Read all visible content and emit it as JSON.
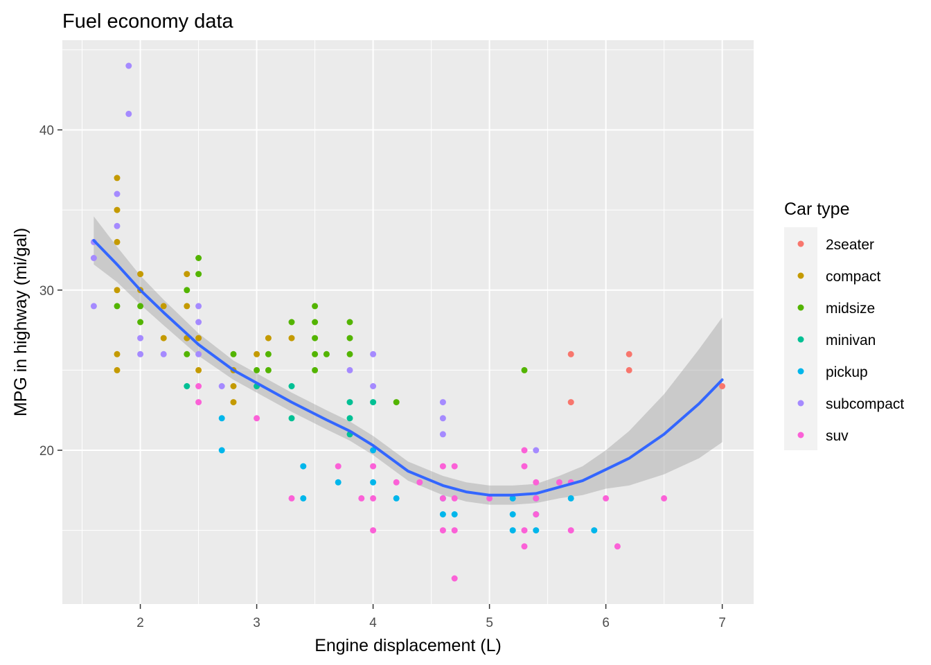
{
  "chart_data": {
    "type": "scatter",
    "title": "Fuel economy data",
    "xlabel": "Engine displacement (L)",
    "ylabel": "MPG in highway (mi/gal)",
    "xlim": [
      1.33,
      7.27
    ],
    "ylim": [
      10.4,
      45.6
    ],
    "x_ticks": [
      2,
      3,
      4,
      5,
      6,
      7
    ],
    "y_ticks": [
      20,
      30,
      40
    ],
    "grid": true,
    "legend": {
      "title": "Car type",
      "position": "right"
    },
    "colors": {
      "2seater": "#F8766D",
      "compact": "#C49A00",
      "midsize": "#53B400",
      "minivan": "#00C094",
      "pickup": "#00B6EB",
      "subcompact": "#A58AFF",
      "suv": "#FB61D7"
    },
    "series": [
      {
        "name": "2seater",
        "points": [
          [
            5.7,
            26
          ],
          [
            5.7,
            23
          ],
          [
            6.2,
            26
          ],
          [
            6.2,
            25
          ],
          [
            7.0,
            24
          ]
        ]
      },
      {
        "name": "compact",
        "points": [
          [
            1.8,
            37
          ],
          [
            1.8,
            35
          ],
          [
            1.8,
            33
          ],
          [
            1.8,
            30
          ],
          [
            1.8,
            26
          ],
          [
            1.8,
            25
          ],
          [
            2.0,
            31
          ],
          [
            2.0,
            30
          ],
          [
            2.2,
            29
          ],
          [
            2.2,
            27
          ],
          [
            2.4,
            31
          ],
          [
            2.4,
            29
          ],
          [
            2.4,
            27
          ],
          [
            2.5,
            27
          ],
          [
            2.5,
            25
          ],
          [
            2.8,
            25
          ],
          [
            2.8,
            24
          ],
          [
            2.8,
            23
          ],
          [
            3.0,
            26
          ],
          [
            3.1,
            27
          ],
          [
            3.3,
            27
          ]
        ]
      },
      {
        "name": "midsize",
        "points": [
          [
            1.8,
            29
          ],
          [
            2.0,
            29
          ],
          [
            2.0,
            28
          ],
          [
            2.4,
            30
          ],
          [
            2.4,
            26
          ],
          [
            2.5,
            32
          ],
          [
            2.5,
            31
          ],
          [
            2.8,
            26
          ],
          [
            3.0,
            25
          ],
          [
            3.1,
            26
          ],
          [
            3.1,
            25
          ],
          [
            3.3,
            28
          ],
          [
            3.5,
            29
          ],
          [
            3.5,
            28
          ],
          [
            3.5,
            27
          ],
          [
            3.5,
            26
          ],
          [
            3.5,
            25
          ],
          [
            3.6,
            26
          ],
          [
            3.8,
            28
          ],
          [
            3.8,
            27
          ],
          [
            3.8,
            26
          ],
          [
            4.2,
            23
          ],
          [
            5.3,
            25
          ]
        ]
      },
      {
        "name": "minivan",
        "points": [
          [
            2.4,
            24
          ],
          [
            3.0,
            24
          ],
          [
            3.3,
            24
          ],
          [
            3.3,
            22
          ],
          [
            3.8,
            23
          ],
          [
            3.8,
            22
          ],
          [
            3.8,
            21
          ],
          [
            4.0,
            23
          ]
        ]
      },
      {
        "name": "pickup",
        "points": [
          [
            2.7,
            22
          ],
          [
            2.7,
            20
          ],
          [
            3.4,
            19
          ],
          [
            3.4,
            17
          ],
          [
            3.7,
            18
          ],
          [
            4.0,
            20
          ],
          [
            4.0,
            18
          ],
          [
            4.2,
            17
          ],
          [
            4.6,
            17
          ],
          [
            4.6,
            16
          ],
          [
            4.7,
            16
          ],
          [
            5.2,
            17
          ],
          [
            5.2,
            16
          ],
          [
            5.2,
            15
          ],
          [
            5.4,
            17
          ],
          [
            5.4,
            16
          ],
          [
            5.4,
            15
          ],
          [
            5.7,
            17
          ],
          [
            5.9,
            15
          ]
        ]
      },
      {
        "name": "subcompact",
        "points": [
          [
            1.6,
            33
          ],
          [
            1.6,
            32
          ],
          [
            1.6,
            29
          ],
          [
            1.8,
            36
          ],
          [
            1.8,
            34
          ],
          [
            1.9,
            44
          ],
          [
            1.9,
            41
          ],
          [
            2.0,
            27
          ],
          [
            2.0,
            26
          ],
          [
            2.2,
            26
          ],
          [
            2.5,
            29
          ],
          [
            2.5,
            28
          ],
          [
            2.5,
            26
          ],
          [
            2.7,
            24
          ],
          [
            3.8,
            25
          ],
          [
            4.0,
            26
          ],
          [
            4.0,
            24
          ],
          [
            4.6,
            23
          ],
          [
            4.6,
            22
          ],
          [
            4.6,
            21
          ],
          [
            5.4,
            20
          ]
        ]
      },
      {
        "name": "suv",
        "points": [
          [
            2.5,
            24
          ],
          [
            2.5,
            23
          ],
          [
            3.0,
            22
          ],
          [
            3.3,
            17
          ],
          [
            3.7,
            19
          ],
          [
            3.9,
            17
          ],
          [
            4.0,
            19
          ],
          [
            4.0,
            17
          ],
          [
            4.0,
            15
          ],
          [
            4.2,
            18
          ],
          [
            4.4,
            18
          ],
          [
            4.6,
            19
          ],
          [
            4.6,
            17
          ],
          [
            4.6,
            15
          ],
          [
            4.7,
            19
          ],
          [
            4.7,
            17
          ],
          [
            4.7,
            15
          ],
          [
            4.7,
            12
          ],
          [
            5.0,
            17
          ],
          [
            5.3,
            20
          ],
          [
            5.3,
            19
          ],
          [
            5.3,
            15
          ],
          [
            5.3,
            14
          ],
          [
            5.4,
            18
          ],
          [
            5.4,
            17
          ],
          [
            5.4,
            16
          ],
          [
            5.6,
            18
          ],
          [
            5.7,
            18
          ],
          [
            5.7,
            15
          ],
          [
            6.0,
            17
          ],
          [
            6.1,
            14
          ],
          [
            6.5,
            17
          ]
        ]
      }
    ],
    "smooth": {
      "x": [
        1.6,
        1.8,
        2.0,
        2.2,
        2.5,
        2.8,
        3.0,
        3.3,
        3.6,
        3.8,
        4.0,
        4.3,
        4.6,
        4.8,
        5.0,
        5.2,
        5.4,
        5.6,
        5.8,
        6.0,
        6.2,
        6.5,
        6.8,
        7.0
      ],
      "y": [
        33.1,
        31.6,
        30.0,
        28.6,
        26.6,
        25.0,
        24.2,
        23.0,
        21.9,
        21.2,
        20.3,
        18.7,
        17.8,
        17.4,
        17.2,
        17.2,
        17.3,
        17.7,
        18.1,
        18.8,
        19.5,
        21.0,
        22.9,
        24.4
      ],
      "lower": [
        31.6,
        30.5,
        29.1,
        27.8,
        25.9,
        24.4,
        23.6,
        22.4,
        21.3,
        20.6,
        19.7,
        18.1,
        17.2,
        16.8,
        16.6,
        16.6,
        16.7,
        17.0,
        17.2,
        17.6,
        17.8,
        18.5,
        19.5,
        20.5
      ],
      "upper": [
        34.6,
        32.7,
        30.9,
        29.4,
        27.3,
        25.6,
        24.8,
        23.6,
        22.5,
        21.8,
        20.9,
        19.3,
        18.4,
        18.0,
        17.8,
        17.8,
        17.9,
        18.4,
        19.0,
        20.0,
        21.2,
        23.5,
        26.3,
        28.3
      ]
    }
  }
}
